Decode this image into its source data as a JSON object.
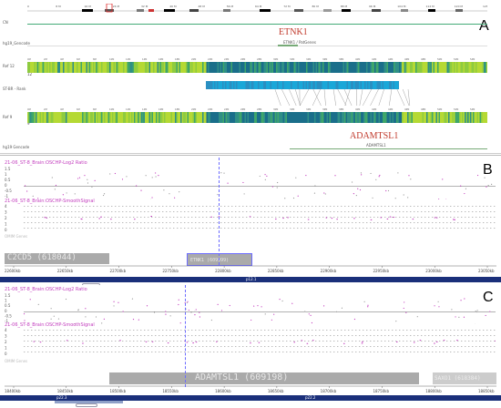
{
  "panels": {
    "A": {
      "letter": "A",
      "ideogram_ticks": [
        "0",
        "8 M",
        "16 M",
        "24 M",
        "32 M",
        "40 M",
        "48 M",
        "56 M",
        "64 M",
        "72 M",
        "80 M",
        "88 M",
        "96 M",
        "104 M",
        "112 M",
        "120 M",
        "128 M"
      ],
      "gene_label_top": "ETNK1",
      "gene_label_bottom": "ADAMTSL1",
      "track_names": {
        "cn": "CN",
        "genes_top": "hg19_Gencode",
        "ref_top": "Ref 12",
        "region": "ST-BR - Rank",
        "ref_bottom": "Ref 9",
        "genes_bottom": "hg19 Gencode"
      },
      "tiny_gene_top": "ETNK1 / PatGenes",
      "tiny_gene_bottom": "ADAMTSL1",
      "ref_top_number": "12",
      "ref_bottom_number": "9"
    },
    "B": {
      "letter": "B",
      "track1": "21-06_ST-8_Brain:OSCHP-Log2 Ratio",
      "track2": "21-06_ST-8_Brain:OSCHP-SmoothSignal",
      "yticks1": [
        "1.5",
        "1",
        "0.5",
        "0",
        "-0.5",
        "-1"
      ],
      "yticks2": [
        "4",
        "3",
        "2",
        "1",
        "0"
      ],
      "genes_label": "OMIM Genes",
      "gene1": "C2CD5 (618044)",
      "gene2": "ETNK1 (609999)",
      "axis_ticks": [
        "22600kb",
        "22650kb",
        "22700kb",
        "22750kb",
        "22800kb",
        "22850kb",
        "22900kb",
        "22950kb",
        "23000kb",
        "23050kb"
      ],
      "band": "p12.1"
    },
    "C": {
      "letter": "C",
      "track1": "21-06_ST-8_Brain:OSCHP-Log2 Ratio",
      "track2": "21-06_ST-8_Brain:OSCHP-SmoothSignal",
      "yticks1": [
        "1.5",
        "1",
        "0.5",
        "0",
        "-0.5",
        "-1"
      ],
      "yticks2": [
        "4",
        "3",
        "2",
        "1",
        "0"
      ],
      "genes_label": "OMIM Genes",
      "gene1": "ADAMTSL1 (609198)",
      "gene2": "SAXO1 (618384)",
      "axis_ticks": [
        "18400kb",
        "18450kb",
        "18500kb",
        "18550kb",
        "18600kb",
        "18650kb",
        "18700kb",
        "18750kb",
        "18800kb",
        "18850kb"
      ],
      "band_left": "p22.3",
      "band_right": "p22.2"
    }
  },
  "colors": {
    "ref_dark": "#1a6e8a",
    "ref_mid": "#3fa66a",
    "ref_light": "#b5d934",
    "region_bar": "#1aa7d8",
    "label_red": "#c0392b",
    "track_magenta": "#c23bbd",
    "dashed_line": "#6b6bff",
    "gene_box": "#aaaaaa",
    "panel_border": "#2c3e8f"
  }
}
